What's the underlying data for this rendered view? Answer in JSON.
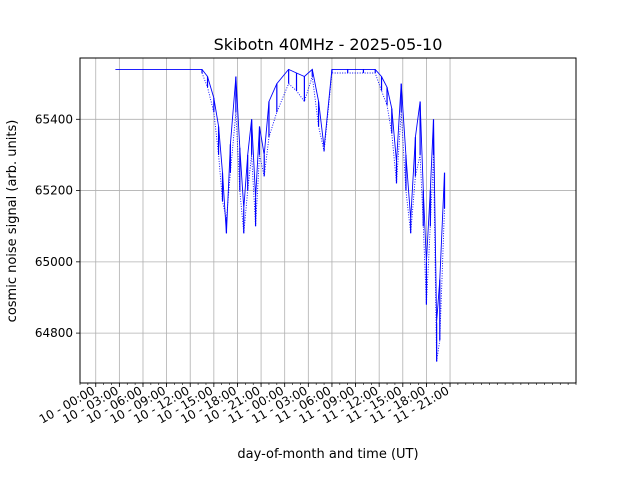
{
  "chart_data": {
    "type": "line",
    "title": "Skibotn 40MHz - 2025-05-10",
    "xlabel": "day-of-month and time (UT)",
    "ylabel": "cosmic noise signal (arb. units)",
    "x_unit": "hours since 10 - 00:00 UT",
    "xlim": [
      -2.0,
      61.0
    ],
    "ylim": [
      64660,
      65572
    ],
    "grid": true,
    "legend": "none",
    "x_ticks": [
      {
        "x": 0,
        "label": "10 - 00:00"
      },
      {
        "x": 3,
        "label": "10 - 03:00"
      },
      {
        "x": 6,
        "label": "10 - 06:00"
      },
      {
        "x": 9,
        "label": "10 - 09:00"
      },
      {
        "x": 12,
        "label": "10 - 12:00"
      },
      {
        "x": 15,
        "label": "10 - 15:00"
      },
      {
        "x": 18,
        "label": "10 - 18:00"
      },
      {
        "x": 21,
        "label": "10 - 21:00"
      },
      {
        "x": 24,
        "label": "11 - 00:00"
      },
      {
        "x": 27,
        "label": "11 - 03:00"
      },
      {
        "x": 30,
        "label": "11 - 06:00"
      },
      {
        "x": 33,
        "label": "11 - 09:00"
      },
      {
        "x": 36,
        "label": "11 - 12:00"
      },
      {
        "x": 39,
        "label": "11 - 15:00"
      },
      {
        "x": 42,
        "label": "11 - 18:00"
      },
      {
        "x": 45,
        "label": "11 - 21:00"
      }
    ],
    "y_ticks": [
      64800,
      65000,
      65200,
      65400
    ],
    "series": [
      {
        "color": "#0000ff",
        "x": [
          2.5,
          8,
          13.5,
          14.2,
          15.0,
          15.6,
          16.1,
          16.6,
          17.1,
          17.8,
          18.3,
          18.8,
          19.3,
          19.8,
          20.3,
          20.8,
          21.4,
          22.0,
          23.0,
          24.5,
          25.5,
          26.5,
          27.5,
          28.3,
          29.0,
          30.0,
          32.0,
          34.0,
          35.5,
          36.3,
          37.0,
          37.6,
          38.2,
          38.8,
          39.4,
          40.0,
          40.6,
          41.2,
          41.6,
          42.0,
          42.5,
          42.9,
          43.3,
          43.7,
          44.3
        ],
        "y": [
          65540,
          65540,
          65540,
          65520,
          65460,
          65380,
          65250,
          65080,
          65330,
          65520,
          65320,
          65150,
          65300,
          65400,
          65180,
          65380,
          65300,
          65450,
          65500,
          65540,
          65530,
          65520,
          65540,
          65450,
          65320,
          65540,
          65540,
          65540,
          65540,
          65520,
          65490,
          65430,
          65280,
          65500,
          65300,
          65120,
          65350,
          65450,
          65200,
          65000,
          65200,
          65400,
          64830,
          64950,
          65250
        ]
      },
      {
        "color": "#0000ff",
        "x": [
          13.5,
          14.2,
          15.0,
          15.6,
          16.1,
          16.6,
          17.1,
          17.8,
          18.3,
          18.8,
          19.3,
          19.8,
          20.3,
          20.8,
          21.4,
          22.0,
          23.0,
          24.5,
          25.5,
          26.5,
          27.5,
          28.3,
          29.0,
          30.0,
          32.0,
          34.0,
          35.5,
          36.3,
          37.0,
          37.6,
          38.2,
          38.8,
          39.4,
          40.0,
          40.6,
          41.2,
          41.6,
          42.0,
          42.5,
          42.9,
          43.3,
          43.7,
          44.3
        ],
        "y": [
          65530,
          65490,
          65420,
          65300,
          65170,
          65120,
          65250,
          65420,
          65200,
          65080,
          65200,
          65300,
          65100,
          65300,
          65240,
          65350,
          65420,
          65500,
          65480,
          65450,
          65520,
          65380,
          65310,
          65530,
          65530,
          65530,
          65530,
          65480,
          65440,
          65360,
          65220,
          65420,
          65200,
          65080,
          65240,
          65300,
          65100,
          64880,
          65100,
          65300,
          64720,
          64780,
          65150
        ]
      }
    ]
  }
}
